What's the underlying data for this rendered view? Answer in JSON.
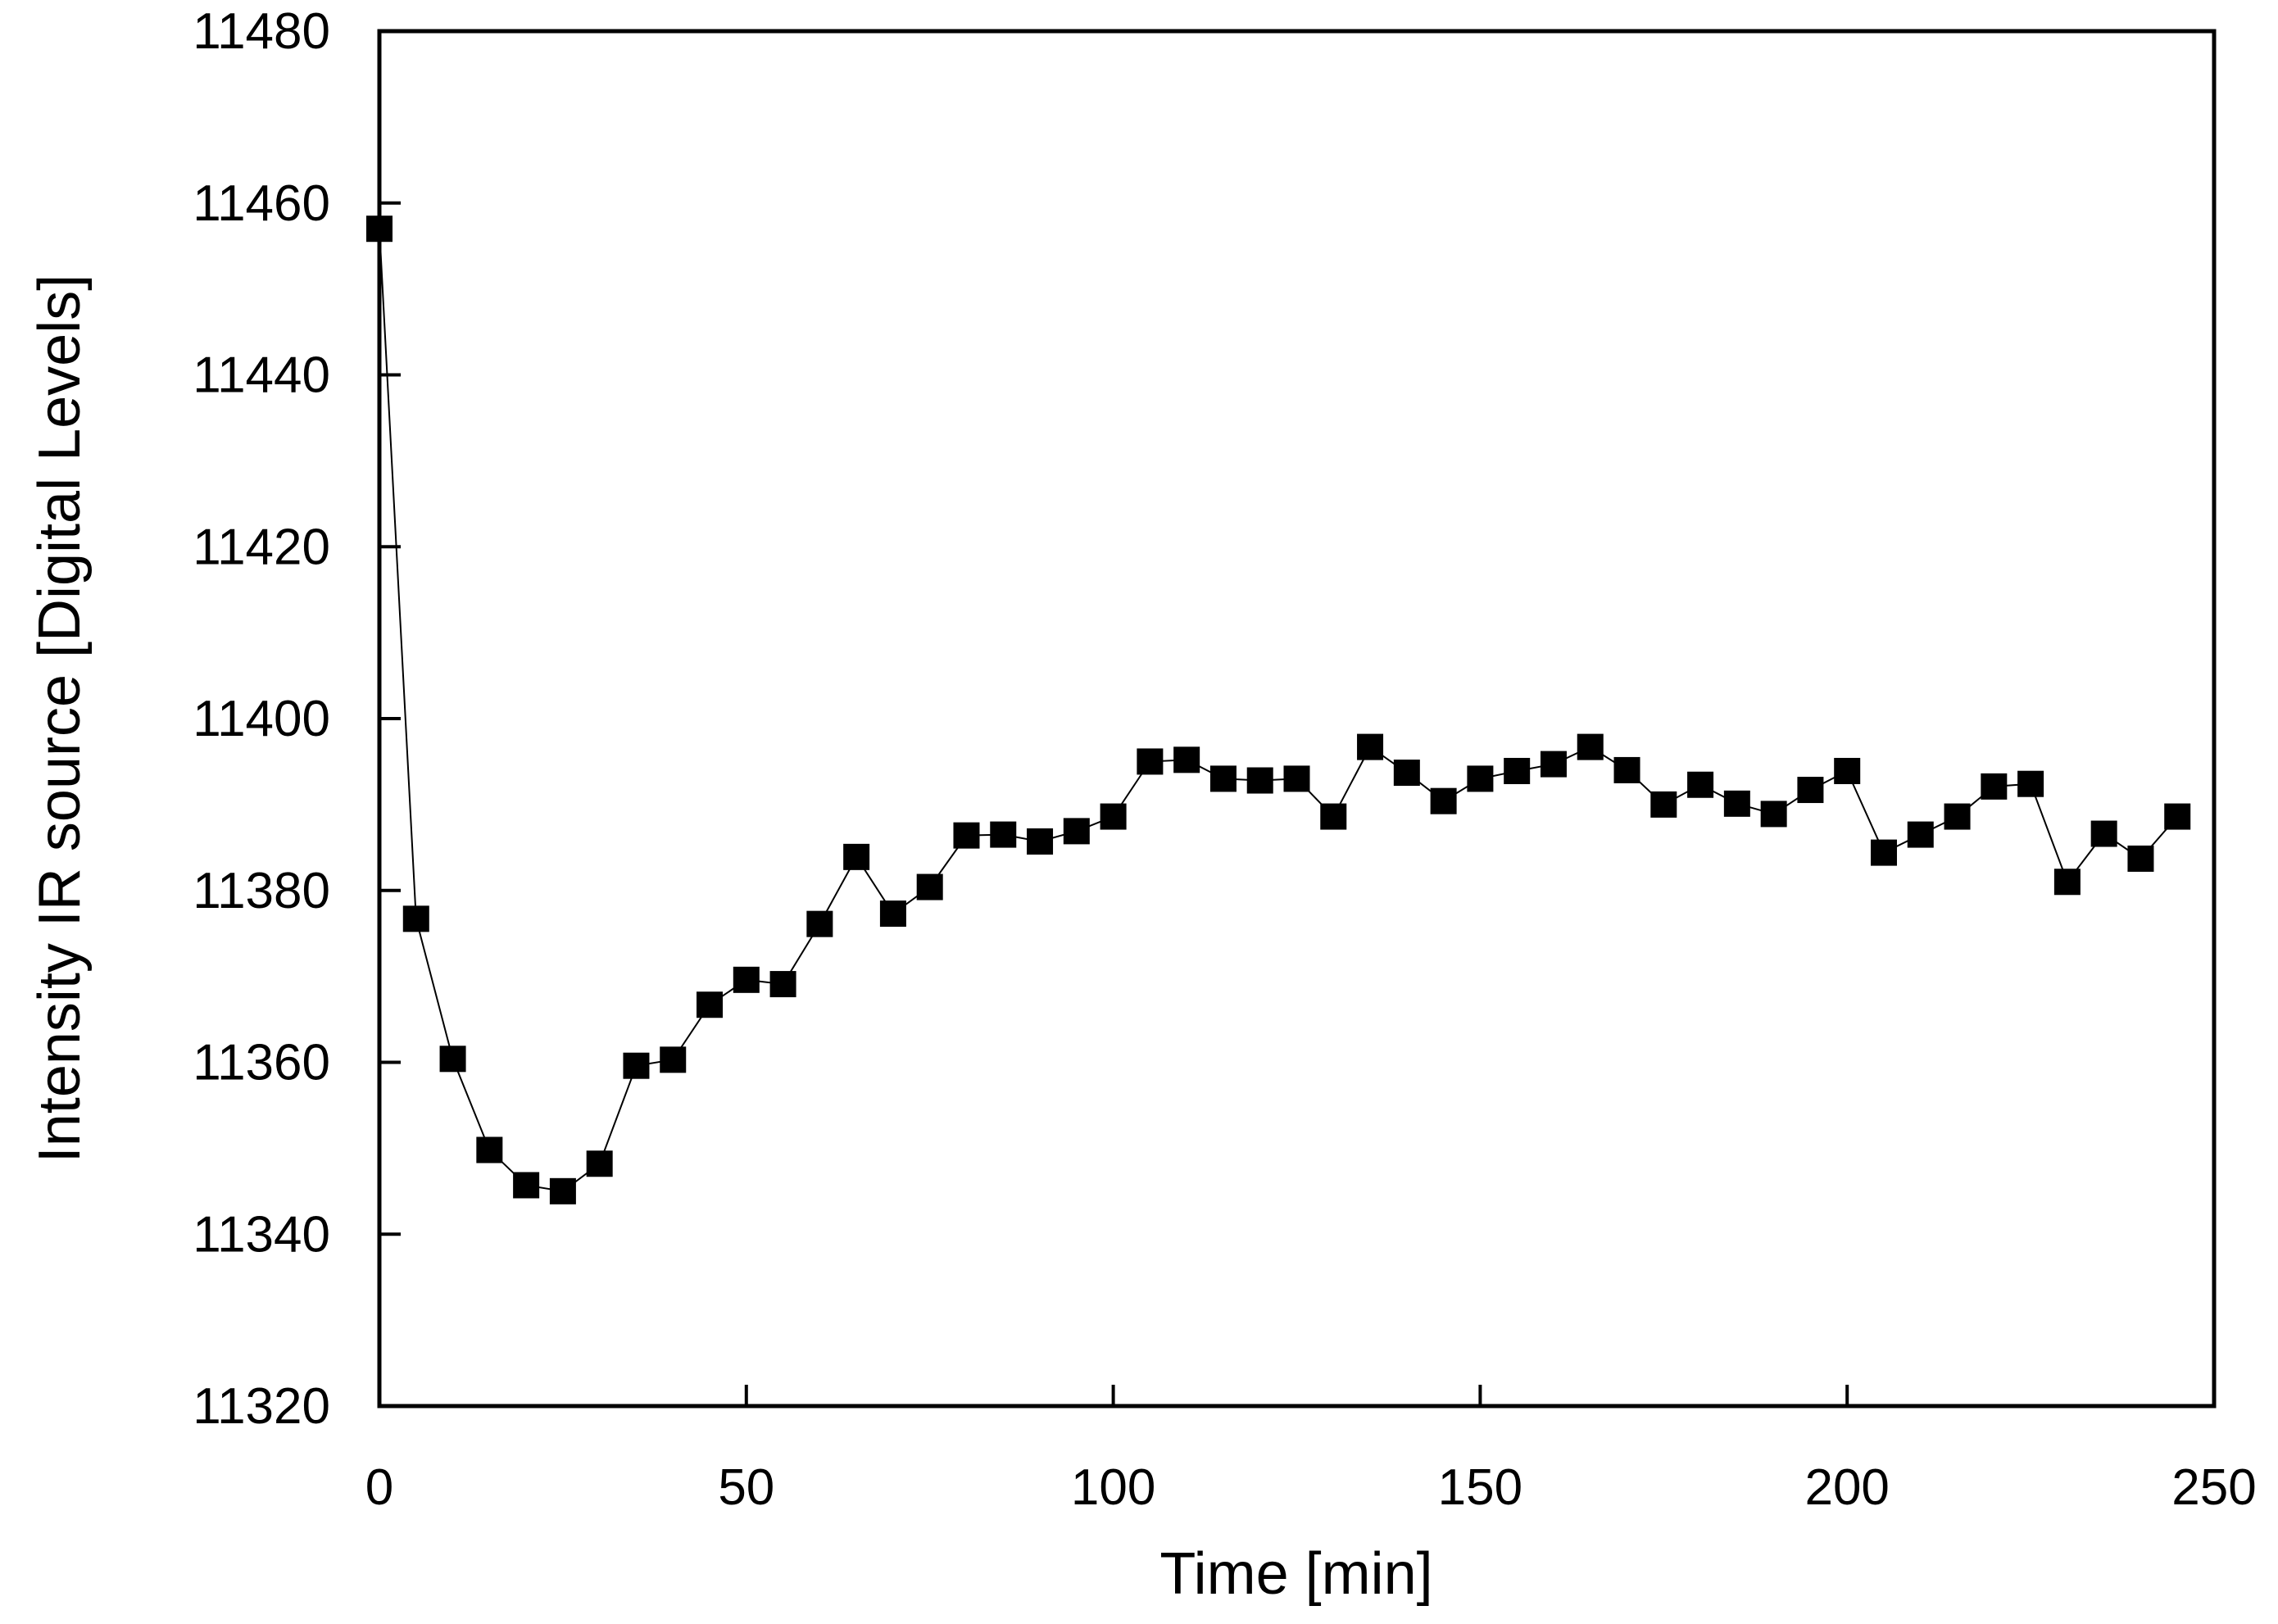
{
  "chart_data": {
    "type": "line",
    "title": "",
    "xlabel": "Time [min]",
    "ylabel": "Intensity  IR source [Digital Levels]",
    "xlim": [
      0,
      250
    ],
    "ylim": [
      11320,
      11480
    ],
    "x_ticks": [
      "0",
      "50",
      "100",
      "150",
      "200",
      "250"
    ],
    "y_ticks": [
      "11320",
      "11340",
      "11360",
      "11380",
      "11400",
      "11420",
      "11440",
      "11460",
      "11480"
    ],
    "grid": false,
    "legend": "none",
    "marker": "square",
    "color": "#000000",
    "series": [
      {
        "x": [
          0,
          5,
          10,
          15,
          20,
          25,
          30,
          35,
          40,
          45,
          50,
          55,
          60,
          65,
          70,
          75,
          80,
          85,
          90,
          95,
          100,
          105,
          110,
          115,
          120,
          125,
          130,
          135,
          140,
          145,
          150,
          155,
          160,
          165,
          170,
          175,
          180,
          185,
          190,
          195,
          200,
          205,
          210,
          215,
          220,
          225,
          230,
          235,
          240,
          245
        ],
        "y": [
          11457,
          11376.7,
          11360.4,
          11349.8,
          11345.7,
          11345,
          11348.2,
          11359.6,
          11360.3,
          11366.7,
          11369.6,
          11369.1,
          11376.1,
          11383.9,
          11377.3,
          11380.4,
          11386.4,
          11386.5,
          11385.7,
          11386.9,
          11388.6,
          11395,
          11395.2,
          11393,
          11392.8,
          11393,
          11388.6,
          11396.7,
          11393.7,
          11390.4,
          11393,
          11393.9,
          11394.7,
          11396.7,
          11394,
          11390,
          11392.3,
          11390.1,
          11388.9,
          11391.7,
          11393.9,
          11384.4,
          11386.5,
          11388.6,
          11392.1,
          11392.4,
          11381,
          11386.6,
          11383.7,
          11388.6
        ]
      }
    ]
  }
}
